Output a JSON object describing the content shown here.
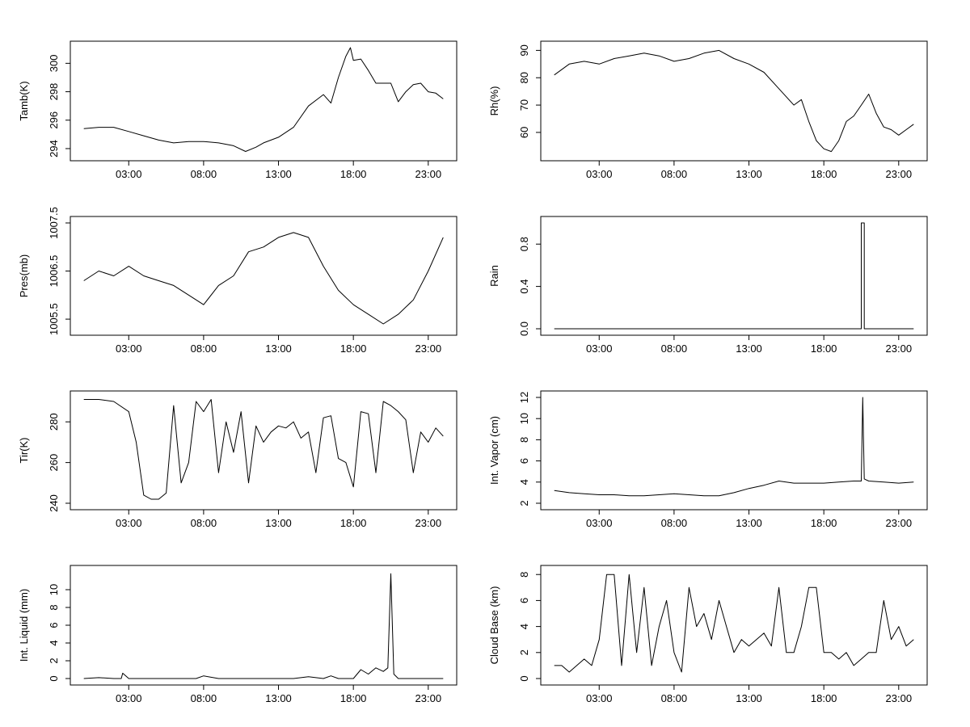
{
  "chart_data": [
    {
      "type": "line",
      "title": "",
      "xlabel": "",
      "ylabel": "Tamb(K)",
      "x_ticks": [
        "03:00",
        "08:00",
        "13:00",
        "18:00",
        "23:00"
      ],
      "y_ticks": [
        "294",
        "296",
        "298",
        "300"
      ],
      "ylim": [
        293.6,
        301.1
      ],
      "series": [
        {
          "x": [
            0,
            1,
            2,
            3,
            4,
            5,
            6,
            7,
            8,
            9,
            10,
            10.8,
            11.5,
            12,
            13,
            14,
            15,
            16,
            16.5,
            17,
            17.5,
            17.8,
            18,
            18.5,
            19,
            19.5,
            20,
            20.5,
            21,
            21.5,
            22,
            22.5,
            23,
            23.5,
            24
          ],
          "values": [
            295.4,
            295.5,
            295.5,
            295.2,
            294.9,
            294.6,
            294.4,
            294.5,
            294.5,
            294.4,
            294.2,
            293.8,
            294.1,
            294.4,
            294.8,
            295.5,
            297.0,
            297.8,
            297.2,
            299.0,
            300.5,
            301.1,
            300.2,
            300.3,
            299.5,
            298.6,
            298.6,
            298.6,
            297.3,
            298.0,
            298.5,
            298.6,
            298.0,
            297.9,
            297.5
          ]
        }
      ]
    },
    {
      "type": "line",
      "title": "",
      "xlabel": "",
      "ylabel": "Rh(%)",
      "x_ticks": [
        "03:00",
        "08:00",
        "13:00",
        "18:00",
        "23:00"
      ],
      "y_ticks": [
        "60",
        "70",
        "80",
        "90"
      ],
      "ylim": [
        52,
        91
      ],
      "series": [
        {
          "x": [
            0,
            1,
            2,
            3,
            4,
            5,
            6,
            7,
            8,
            9,
            10,
            11,
            12,
            13,
            14,
            15,
            16,
            16.5,
            17,
            17.5,
            18,
            18.5,
            19,
            19.5,
            20,
            20.5,
            21,
            21.5,
            22,
            22.5,
            23,
            23.5,
            24
          ],
          "values": [
            81,
            85,
            86,
            85,
            87,
            88,
            89,
            88,
            86,
            87,
            89,
            90,
            87,
            85,
            82,
            76,
            70,
            72,
            64,
            57,
            54,
            53,
            57,
            64,
            66,
            70,
            74,
            67,
            62,
            61,
            59,
            61,
            63
          ]
        }
      ]
    },
    {
      "type": "line",
      "title": "",
      "xlabel": "",
      "ylabel": "Pres(mb)",
      "x_ticks": [
        "03:00",
        "08:00",
        "13:00",
        "18:00",
        "23:00"
      ],
      "y_ticks": [
        "1005.5",
        "1006.5",
        "1007.5"
      ],
      "ylim": [
        1005.3,
        1007.5
      ],
      "series": [
        {
          "x": [
            0,
            1,
            2,
            3,
            4,
            5,
            6,
            7,
            8,
            9,
            10,
            11,
            12,
            13,
            14,
            15,
            16,
            17,
            18,
            19,
            20,
            21,
            22,
            23,
            24
          ],
          "values": [
            1006.3,
            1006.5,
            1006.4,
            1006.6,
            1006.4,
            1006.3,
            1006.2,
            1006.0,
            1005.8,
            1006.2,
            1006.4,
            1006.9,
            1007.0,
            1007.2,
            1007.3,
            1007.2,
            1006.6,
            1006.1,
            1005.8,
            1005.6,
            1005.4,
            1005.6,
            1005.9,
            1006.5,
            1007.2
          ]
        }
      ]
    },
    {
      "type": "line",
      "title": "",
      "xlabel": "",
      "ylabel": "Rain",
      "x_ticks": [
        "03:00",
        "08:00",
        "13:00",
        "18:00",
        "23:00"
      ],
      "y_ticks": [
        "0.0",
        "0.4",
        "0.8"
      ],
      "ylim": [
        0,
        1.0
      ],
      "series": [
        {
          "x": [
            0,
            20.5,
            20.5,
            20.7,
            20.7,
            24
          ],
          "values": [
            0,
            0,
            1,
            1,
            0,
            0
          ]
        }
      ]
    },
    {
      "type": "line",
      "title": "",
      "xlabel": "",
      "ylabel": "Tir(K)",
      "x_ticks": [
        "03:00",
        "08:00",
        "13:00",
        "18:00",
        "23:00"
      ],
      "y_ticks": [
        "240",
        "260",
        "280"
      ],
      "ylim": [
        240,
        292
      ],
      "series": [
        {
          "x": [
            0,
            1,
            2,
            3,
            3.5,
            4,
            4.5,
            5,
            5.5,
            6,
            6.5,
            7,
            7.5,
            8,
            8.5,
            9,
            9.5,
            10,
            10.5,
            11,
            11.5,
            12,
            12.5,
            13,
            13.5,
            14,
            14.5,
            15,
            15.5,
            16,
            16.5,
            17,
            17.5,
            18,
            18.5,
            19,
            19.5,
            20,
            20.5,
            21,
            21.5,
            22,
            22.5,
            23,
            23.5,
            24
          ],
          "values": [
            291,
            291,
            290,
            285,
            270,
            244,
            242,
            242,
            245,
            288,
            250,
            260,
            290,
            285,
            291,
            255,
            280,
            265,
            285,
            250,
            278,
            270,
            275,
            278,
            277,
            280,
            272,
            275,
            255,
            282,
            283,
            262,
            260,
            248,
            285,
            284,
            255,
            290,
            288,
            285,
            281,
            255,
            275,
            270,
            277,
            273
          ]
        }
      ]
    },
    {
      "type": "line",
      "title": "",
      "xlabel": "",
      "ylabel": "Int. Vapor (cm)",
      "x_ticks": [
        "03:00",
        "08:00",
        "13:00",
        "18:00",
        "23:00"
      ],
      "y_ticks": [
        "2",
        "4",
        "6",
        "8",
        "10",
        "12"
      ],
      "ylim": [
        2,
        12
      ],
      "series": [
        {
          "x": [
            0,
            1,
            2,
            3,
            4,
            5,
            6,
            7,
            8,
            9,
            10,
            11,
            12,
            13,
            14,
            15,
            16,
            17,
            18,
            19,
            20,
            20.5,
            20.6,
            20.7,
            21,
            22,
            23,
            24
          ],
          "values": [
            3.2,
            3.0,
            2.9,
            2.8,
            2.8,
            2.7,
            2.7,
            2.8,
            2.9,
            2.8,
            2.7,
            2.7,
            3.0,
            3.4,
            3.7,
            4.1,
            3.9,
            3.9,
            3.9,
            4.0,
            4.1,
            4.1,
            12.0,
            4.3,
            4.1,
            4.0,
            3.9,
            4.0
          ]
        }
      ]
    },
    {
      "type": "line",
      "title": "",
      "xlabel": "",
      "ylabel": "Int. Liquid (mm)",
      "x_ticks": [
        "03:00",
        "08:00",
        "13:00",
        "18:00",
        "23:00"
      ],
      "y_ticks": [
        "0",
        "2",
        "4",
        "6",
        "8",
        "10"
      ],
      "ylim": [
        0,
        12
      ],
      "series": [
        {
          "x": [
            0,
            1,
            2,
            2.5,
            2.6,
            3,
            4,
            5,
            6,
            7,
            7.5,
            8,
            9,
            10,
            11,
            12,
            13,
            14,
            15,
            16,
            16.5,
            17,
            18,
            18.5,
            19,
            19.5,
            20,
            20.3,
            20.5,
            20.7,
            21,
            22,
            23,
            24
          ],
          "values": [
            0,
            0.1,
            0,
            0,
            0.6,
            0,
            0,
            0,
            0,
            0,
            0,
            0.3,
            0,
            0,
            0,
            0,
            0,
            0,
            0.2,
            0,
            0.3,
            0,
            0,
            1.0,
            0.5,
            1.2,
            0.8,
            1.2,
            11.8,
            0.5,
            0,
            0,
            0,
            0
          ]
        }
      ]
    },
    {
      "type": "line",
      "title": "",
      "xlabel": "",
      "ylabel": "Cloud Base (km)",
      "x_ticks": [
        "03:00",
        "08:00",
        "13:00",
        "18:00",
        "23:00"
      ],
      "y_ticks": [
        "0",
        "2",
        "4",
        "6",
        "8"
      ],
      "ylim": [
        0,
        8.2
      ],
      "series": [
        {
          "x": [
            0,
            0.5,
            1,
            1.5,
            2,
            2.5,
            3,
            3.5,
            4,
            4.5,
            5,
            5.5,
            6,
            6.5,
            7,
            7.5,
            8,
            8.5,
            9,
            9.5,
            10,
            10.5,
            11,
            11.5,
            12,
            12.5,
            13,
            13.5,
            14,
            14.5,
            15,
            15.5,
            16,
            16.5,
            17,
            17.5,
            18,
            18.5,
            19,
            19.5,
            20,
            20.5,
            21,
            21.5,
            22,
            22.5,
            23,
            23.5,
            24
          ],
          "values": [
            1,
            1,
            0.5,
            1,
            1.5,
            1,
            3,
            8,
            8,
            1,
            8,
            2,
            7,
            1,
            4,
            6,
            2,
            0.5,
            7,
            4,
            5,
            3,
            6,
            4,
            2,
            3,
            2.5,
            3,
            3.5,
            2.5,
            7,
            2,
            2,
            4,
            7,
            7,
            2,
            2,
            1.5,
            2,
            1,
            1.5,
            2,
            2,
            6,
            3,
            4,
            2.5,
            3
          ]
        }
      ]
    }
  ]
}
